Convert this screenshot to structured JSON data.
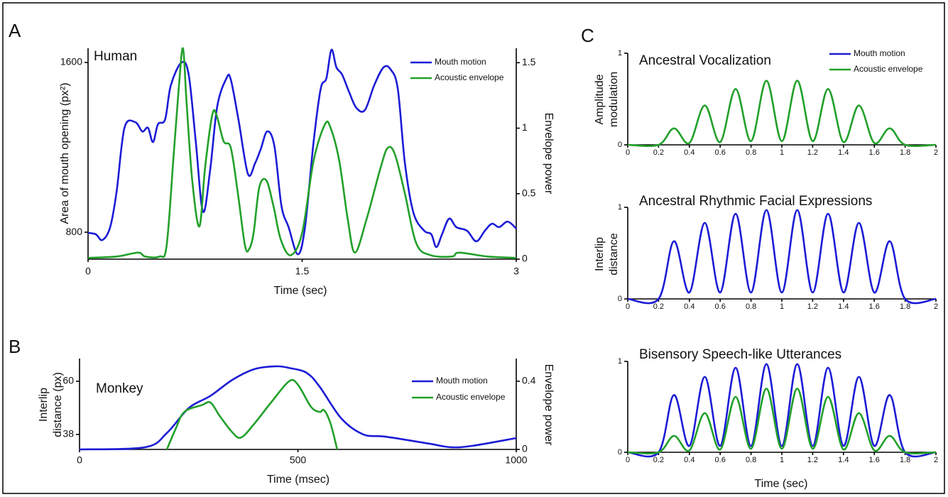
{
  "chart_data": [
    {
      "type": "line",
      "panel": "A",
      "title": "Human",
      "xlabel": "Time (sec)",
      "ylabel": [
        "Area of mouth opening (px²)"
      ],
      "y2label": "Envelope power",
      "xlim": [
        0,
        3
      ],
      "xticks": [
        0,
        1.5,
        3
      ],
      "ylim": [
        673,
        1667
      ],
      "yticks": [
        800,
        1600
      ],
      "y2lim": [
        0,
        1.61
      ],
      "y2ticks": [
        0,
        0.5,
        1,
        1.5
      ],
      "legend": "upper right",
      "series": [
        {
          "name": "Mouth motion",
          "color": "#1c1cd6",
          "x": [
            0,
            0.055,
            0.1,
            0.155,
            0.2,
            0.255,
            0.33,
            0.38,
            0.42,
            0.455,
            0.49,
            0.54,
            0.58,
            0.655,
            0.705,
            0.755,
            0.805,
            0.855,
            0.905,
            0.97,
            1.0,
            1.055,
            1.12,
            1.17,
            1.21,
            1.255,
            1.305,
            1.355,
            1.405,
            1.47,
            1.52,
            1.58,
            1.63,
            1.67,
            1.705,
            1.74,
            1.78,
            1.83,
            1.88,
            1.94,
            2.005,
            2.07,
            2.12,
            2.17,
            2.22,
            2.28,
            2.355,
            2.405,
            2.44,
            2.48,
            2.53,
            2.58,
            2.655,
            2.72,
            2.78,
            2.83,
            2.88,
            2.94,
            3.0
          ],
          "values": [
            797,
            790,
            763,
            824,
            991,
            1292,
            1319,
            1275,
            1292,
            1225,
            1309,
            1332,
            1493,
            1600,
            1543,
            1225,
            897,
            1091,
            1393,
            1526,
            1520,
            1326,
            1075,
            1125,
            1192,
            1275,
            1208,
            924,
            824,
            696,
            824,
            1225,
            1476,
            1526,
            1660,
            1577,
            1543,
            1459,
            1386,
            1376,
            1493,
            1577,
            1567,
            1476,
            1125,
            891,
            807,
            790,
            730,
            790,
            864,
            824,
            807,
            757,
            807,
            840,
            824,
            850,
            817
          ]
        },
        {
          "name": "Acoustic envelope",
          "color": "#22a02a",
          "axis": "y2",
          "x": [
            0,
            0.2,
            0.35,
            0.4,
            0.5,
            0.55,
            0.6,
            0.635,
            0.665,
            0.69,
            0.73,
            0.78,
            0.82,
            0.87,
            0.9,
            0.95,
            1.0,
            1.05,
            1.1,
            1.13,
            1.16,
            1.2,
            1.25,
            1.3,
            1.35,
            1.42,
            1.5,
            1.58,
            1.66,
            1.7,
            1.76,
            1.82,
            1.87,
            1.95,
            2.05,
            2.1,
            2.15,
            2.22,
            2.3,
            2.4,
            2.55,
            2.6,
            2.8,
            3.0
          ],
          "values": [
            0.01,
            0.02,
            0.05,
            0.02,
            0.02,
            0.1,
            0.8,
            1.3,
            1.61,
            1.2,
            0.6,
            0.25,
            0.7,
            1.1,
            1.1,
            0.9,
            0.85,
            0.5,
            0.1,
            0.08,
            0.2,
            0.55,
            0.6,
            0.4,
            0.15,
            0.03,
            0.2,
            0.75,
            1.03,
            1.0,
            0.75,
            0.3,
            0.05,
            0.3,
            0.7,
            0.85,
            0.8,
            0.5,
            0.12,
            0.03,
            0.02,
            0.05,
            0.02,
            0.01
          ]
        }
      ]
    },
    {
      "type": "line",
      "panel": "B",
      "title": "Monkey",
      "xlabel": "Time (msec)",
      "ylabel": [
        "Interlip",
        "distance (px)"
      ],
      "y2label": "Envelope power",
      "xlim": [
        0,
        1000
      ],
      "xticks": [
        0,
        500,
        1000
      ],
      "ylim": [
        31.8,
        69.4
      ],
      "yticks": [
        38,
        60
      ],
      "y2lim": [
        0,
        0.533
      ],
      "y2ticks": [
        0,
        0.4
      ],
      "legend": "upper right",
      "series": [
        {
          "name": "Mouth motion",
          "color": "#1c1cd6",
          "x": [
            0,
            150,
            200,
            250,
            300,
            350,
            400,
            450,
            480,
            520,
            550,
            600,
            650,
            700,
            800,
            850,
            900,
            1000
          ],
          "values": [
            31.8,
            32.7,
            38.6,
            48.9,
            54,
            60.6,
            65,
            66.2,
            65.5,
            63.5,
            57.7,
            44.5,
            38,
            37.1,
            34.2,
            32.7,
            33.3,
            36.5
          ]
        },
        {
          "name": "Acoustic envelope",
          "color": "#22a02a",
          "axis": "y2",
          "x": [
            200,
            220,
            240,
            280,
            300,
            320,
            350,
            370,
            400,
            440,
            480,
            500,
            530,
            550,
            560,
            575,
            590
          ],
          "values": [
            0,
            0.12,
            0.22,
            0.26,
            0.275,
            0.2,
            0.1,
            0.07,
            0.15,
            0.28,
            0.4,
            0.38,
            0.25,
            0.22,
            0.23,
            0.15,
            0
          ]
        }
      ]
    },
    {
      "type": "line",
      "panel": "C",
      "title": "Ancestral Vocalization",
      "ylabel": [
        "Amplitude",
        "modulation"
      ],
      "xlim": [
        0,
        2
      ],
      "xticks": [
        0,
        0.2,
        0.4,
        0.6,
        0.8,
        1,
        1.2,
        1.4,
        1.6,
        1.8,
        2
      ],
      "ylim": [
        0,
        1
      ],
      "yticks": [
        0,
        1
      ],
      "legend": "upper right",
      "legend_entries": [
        {
          "name": "Mouth motion",
          "color": "#1c1cd6"
        },
        {
          "name": "Acoustic envelope",
          "color": "#22a02a"
        }
      ],
      "series": [
        {
          "color": "#22a02a",
          "x": [
            0,
            0.2,
            0.3,
            0.4,
            0.5,
            0.6,
            0.7,
            0.8,
            0.9,
            1.0,
            1.1,
            1.2,
            1.3,
            1.4,
            1.5,
            1.6,
            1.7,
            1.8,
            2
          ],
          "values": [
            0,
            0,
            0.18,
            0.02,
            0.43,
            0.03,
            0.61,
            0.04,
            0.7,
            0.04,
            0.7,
            0.04,
            0.61,
            0.03,
            0.43,
            0.02,
            0.18,
            0,
            0
          ]
        }
      ]
    },
    {
      "type": "line",
      "title": "Ancestral Rhythmic Facial Expressions",
      "ylabel": [
        "Interlip",
        "distance"
      ],
      "xlim": [
        0,
        2
      ],
      "xticks": [
        0,
        0.2,
        0.4,
        0.6,
        0.8,
        1,
        1.2,
        1.4,
        1.6,
        1.8,
        2
      ],
      "ylim": [
        0,
        1
      ],
      "yticks": [
        0,
        1
      ],
      "series": [
        {
          "color": "#1c1cd6",
          "x": [
            0,
            0.2,
            0.3,
            0.4,
            0.5,
            0.6,
            0.7,
            0.8,
            0.9,
            1.0,
            1.1,
            1.2,
            1.3,
            1.4,
            1.5,
            1.6,
            1.7,
            1.8,
            2
          ],
          "values": [
            0,
            0,
            0.63,
            0.07,
            0.83,
            0.07,
            0.93,
            0.07,
            0.97,
            0.07,
            0.97,
            0.07,
            0.93,
            0.07,
            0.83,
            0.07,
            0.63,
            0,
            0
          ]
        }
      ]
    },
    {
      "type": "line",
      "title": "Bisensory Speech-like Utterances",
      "xlabel": "Time (sec)",
      "xlim": [
        0,
        2
      ],
      "xticks": [
        0,
        0.2,
        0.4,
        0.6,
        0.8,
        1,
        1.2,
        1.4,
        1.6,
        1.8,
        2
      ],
      "ylim": [
        0,
        1
      ],
      "yticks": [
        0,
        1
      ],
      "series": [
        {
          "color": "#1c1cd6",
          "x": [
            0,
            0.2,
            0.3,
            0.4,
            0.5,
            0.6,
            0.7,
            0.8,
            0.9,
            1.0,
            1.1,
            1.2,
            1.3,
            1.4,
            1.5,
            1.6,
            1.7,
            1.8,
            2
          ],
          "values": [
            0,
            0,
            0.63,
            0.07,
            0.83,
            0.07,
            0.93,
            0.07,
            0.97,
            0.07,
            0.97,
            0.07,
            0.93,
            0.07,
            0.83,
            0.07,
            0.63,
            0,
            0
          ]
        },
        {
          "color": "#22a02a",
          "x": [
            0,
            0.2,
            0.3,
            0.4,
            0.5,
            0.6,
            0.7,
            0.8,
            0.9,
            1.0,
            1.1,
            1.2,
            1.3,
            1.4,
            1.5,
            1.6,
            1.7,
            1.8,
            2
          ],
          "values": [
            0,
            0,
            0.18,
            0.02,
            0.43,
            0.03,
            0.61,
            0.04,
            0.7,
            0.04,
            0.7,
            0.04,
            0.61,
            0.03,
            0.43,
            0.02,
            0.18,
            0,
            0
          ]
        }
      ]
    }
  ]
}
